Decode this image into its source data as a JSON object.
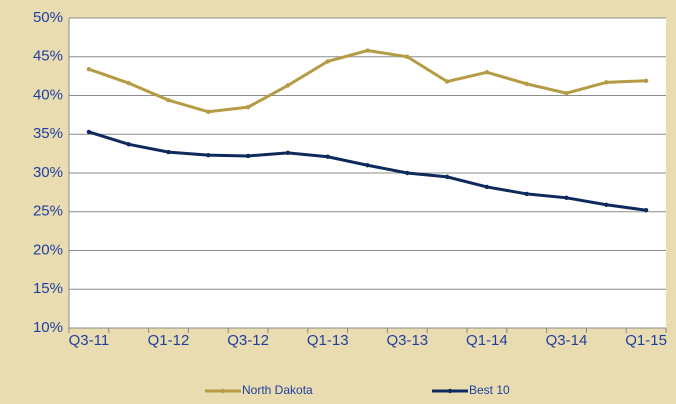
{
  "chart_data": {
    "type": "line",
    "categories": [
      "Q3-11",
      null,
      "Q1-12",
      null,
      "Q3-12",
      null,
      "Q1-13",
      null,
      "Q3-13",
      null,
      "Q1-14",
      null,
      "Q3-14",
      null,
      "Q1-15"
    ],
    "series": [
      {
        "name": "North Dakota",
        "color": "#b59b45",
        "values": [
          43.4,
          41.6,
          39.4,
          37.9,
          38.5,
          41.3,
          44.4,
          45.8,
          45.0,
          41.8,
          43.0,
          41.5,
          40.3,
          41.7,
          41.9
        ]
      },
      {
        "name": "Best 10",
        "color": "#0e2a5c",
        "values": [
          35.3,
          33.7,
          32.7,
          32.3,
          32.2,
          32.6,
          32.1,
          31.0,
          30.0,
          29.5,
          28.2,
          27.3,
          26.8,
          25.9,
          25.2
        ]
      }
    ],
    "ylim": [
      10,
      50
    ],
    "yticks": [
      {
        "value": 10,
        "label": "10%"
      },
      {
        "value": 15,
        "label": "15%"
      },
      {
        "value": 20,
        "label": "20%"
      },
      {
        "value": 25,
        "label": "25%"
      },
      {
        "value": 30,
        "label": "30%"
      },
      {
        "value": 35,
        "label": "35%"
      },
      {
        "value": 40,
        "label": "40%"
      },
      {
        "value": 45,
        "label": "45%"
      },
      {
        "value": 50,
        "label": "50%"
      }
    ],
    "grid": true,
    "legend": "bottom"
  }
}
